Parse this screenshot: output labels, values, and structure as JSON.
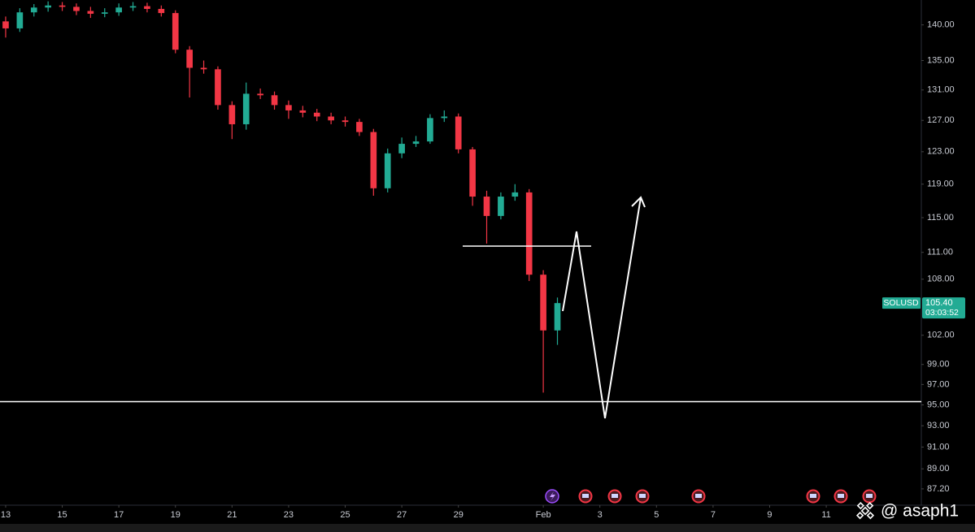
{
  "chart_data": {
    "type": "candlestick",
    "x": [
      0,
      0.5,
      1,
      1.5,
      2,
      2.5,
      3,
      3.5,
      4,
      4.5,
      5,
      5.5,
      6,
      6.5,
      7,
      7.5,
      8,
      8.5,
      9,
      9.5,
      10,
      10.5,
      11,
      11.5,
      12,
      12.5,
      13,
      13.5,
      14,
      14.5,
      15,
      15.5,
      16,
      16.5,
      17,
      17.5,
      18,
      18.5,
      19,
      19.5
    ],
    "open": [
      140.5,
      139.5,
      141.8,
      142.5,
      142.8,
      142.6,
      142.0,
      141.6,
      141.8,
      142.5,
      142.7,
      142.3,
      141.7,
      136.5,
      134.0,
      133.8,
      129.0,
      126.5,
      130.5,
      130.3,
      129.0,
      128.3,
      128.0,
      127.5,
      127.0,
      126.8,
      125.5,
      118.5,
      122.8,
      124.0,
      124.3,
      127.3,
      127.5,
      123.3,
      117.5,
      115.2,
      117.5,
      118.0,
      108.5,
      102.5
    ],
    "high": [
      141.2,
      142.4,
      143.0,
      143.4,
      143.3,
      143.1,
      142.6,
      142.4,
      143.1,
      143.3,
      143.2,
      142.8,
      142.1,
      137.0,
      135.0,
      134.2,
      129.5,
      132.0,
      131.2,
      130.8,
      129.6,
      128.9,
      128.5,
      128.0,
      127.5,
      127.2,
      125.9,
      123.4,
      124.8,
      125.0,
      127.8,
      128.3,
      127.9,
      123.6,
      118.2,
      118.0,
      119.0,
      118.4,
      109.0,
      106.0
    ],
    "low": [
      138.2,
      139.0,
      141.2,
      141.9,
      142.0,
      141.4,
      141.0,
      141.1,
      141.3,
      142.0,
      141.8,
      141.2,
      136.0,
      130.0,
      133.2,
      128.4,
      124.6,
      125.8,
      129.8,
      128.4,
      127.2,
      127.4,
      126.9,
      126.5,
      126.2,
      125.0,
      117.6,
      118.0,
      122.2,
      123.6,
      124.0,
      126.8,
      122.8,
      116.4,
      112.0,
      114.8,
      117.0,
      107.8,
      96.2,
      101.0
    ],
    "close": [
      139.5,
      141.8,
      142.5,
      142.8,
      142.6,
      142.0,
      141.6,
      141.8,
      142.5,
      142.7,
      142.3,
      141.7,
      136.5,
      134.0,
      133.8,
      129.0,
      126.5,
      130.5,
      130.3,
      129.0,
      128.3,
      128.0,
      127.5,
      127.0,
      126.8,
      125.5,
      118.5,
      122.8,
      124.0,
      124.3,
      127.3,
      127.5,
      123.3,
      117.5,
      115.2,
      117.5,
      118.0,
      108.5,
      102.5,
      105.4
    ],
    "up_color": "#22ab94",
    "down_color": "#f23645",
    "log_scale": true,
    "ylim": [
      85.9,
      143.6
    ],
    "yticks": [
      {
        "value": 140,
        "label": "140.00"
      },
      {
        "value": 135,
        "label": "135.00"
      },
      {
        "value": 131,
        "label": "131.00"
      },
      {
        "value": 127,
        "label": "127.00"
      },
      {
        "value": 123,
        "label": "123.00"
      },
      {
        "value": 119,
        "label": "119.00"
      },
      {
        "value": 115,
        "label": "115.00"
      },
      {
        "value": 111,
        "label": "111.00"
      },
      {
        "value": 108,
        "label": "108.00"
      },
      {
        "value": 102,
        "label": "102.00"
      },
      {
        "value": 99,
        "label": "99.00"
      },
      {
        "value": 97,
        "label": "97.00"
      },
      {
        "value": 95,
        "label": "95.00"
      },
      {
        "value": 93,
        "label": "93.00"
      },
      {
        "value": 91,
        "label": "91.00"
      },
      {
        "value": 89,
        "label": "89.00"
      },
      {
        "value": 87.2,
        "label": "87.20"
      }
    ],
    "xlim": [
      -0.2,
      32.36
    ],
    "xticks": [
      {
        "value": 0,
        "label": "13"
      },
      {
        "value": 2,
        "label": "15"
      },
      {
        "value": 4,
        "label": "17"
      },
      {
        "value": 6,
        "label": "19"
      },
      {
        "value": 8,
        "label": "21"
      },
      {
        "value": 10,
        "label": "23"
      },
      {
        "value": 12,
        "label": "25"
      },
      {
        "value": 14,
        "label": "27"
      },
      {
        "value": 16,
        "label": "29"
      },
      {
        "value": 19,
        "label": "Feb"
      },
      {
        "value": 21,
        "label": "3"
      },
      {
        "value": 23,
        "label": "5"
      },
      {
        "value": 25,
        "label": "7"
      },
      {
        "value": 27,
        "label": "9"
      },
      {
        "value": 29,
        "label": "11"
      }
    ],
    "price_tag": {
      "symbol": "SOLUSD",
      "price": "105.40",
      "countdown": "03:03:52"
    },
    "watermark": "@ asaph1"
  }
}
